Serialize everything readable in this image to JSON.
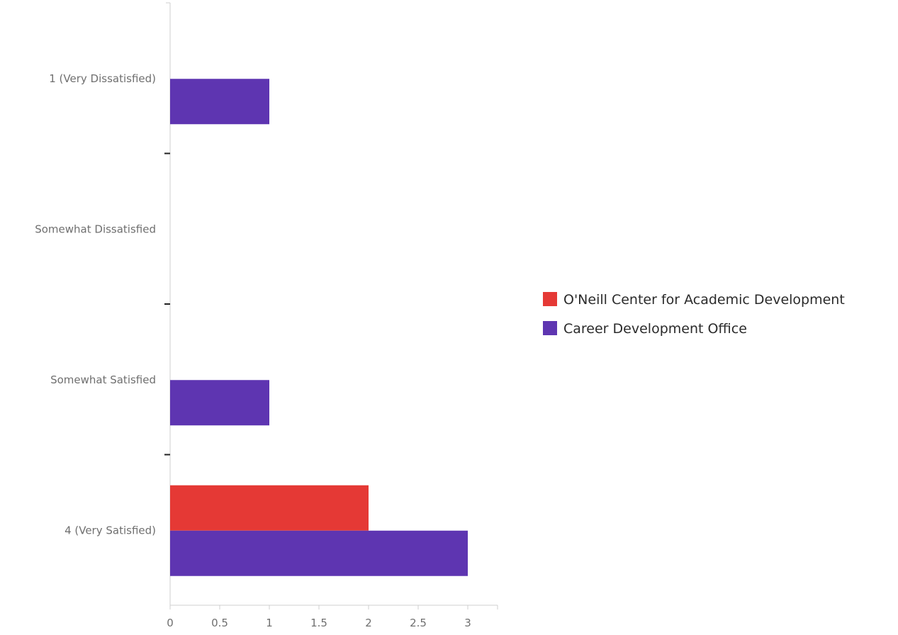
{
  "chart_data": {
    "type": "bar",
    "orientation": "horizontal",
    "categories": [
      "1 (Very Dissatisfied)",
      "Somewhat Dissatisfied",
      "Somewhat Satisfied",
      "4 (Very Satisfied)"
    ],
    "series": [
      {
        "name": "O'Neill Center for Academic Development",
        "color": "#e53935",
        "values": [
          0,
          0,
          0,
          2
        ]
      },
      {
        "name": "Career Development Office",
        "color": "#5e35b1",
        "values": [
          1,
          0,
          1,
          3
        ]
      }
    ],
    "x_ticks": [
      "0",
      "0.5",
      "1",
      "1.5",
      "2",
      "2.5",
      "3"
    ],
    "xlim": [
      0,
      3.3
    ],
    "title": "",
    "xlabel": "",
    "ylabel": "",
    "grid": false,
    "legend": "right"
  }
}
